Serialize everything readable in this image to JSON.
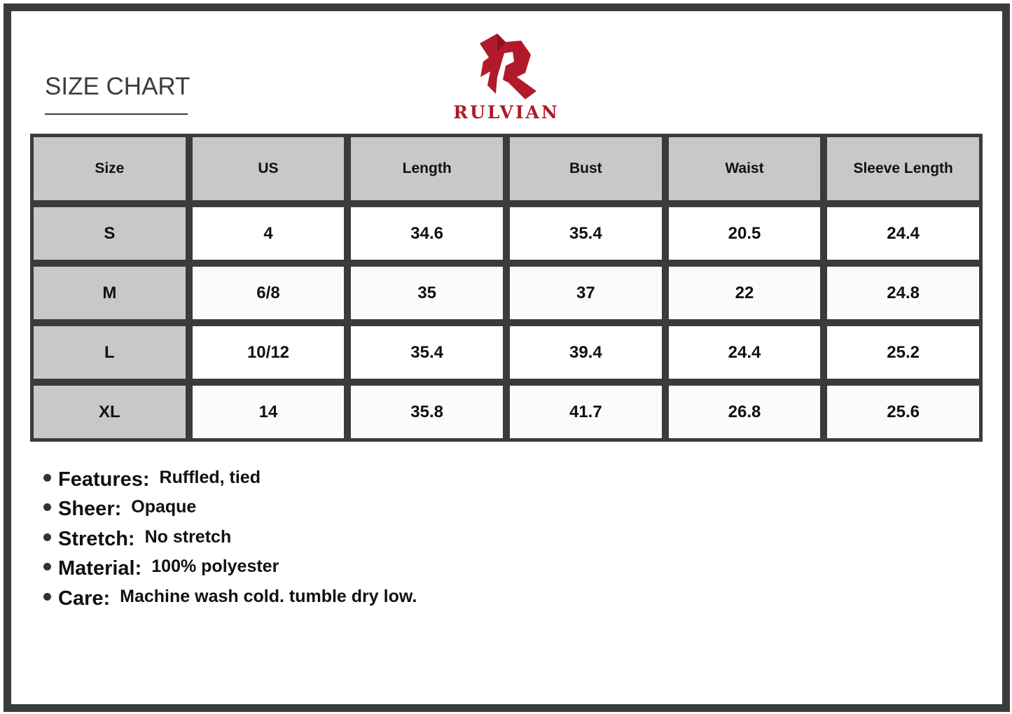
{
  "header": {
    "title": "SIZE CHART"
  },
  "brand": {
    "name": "RULVIAN",
    "color": "#b01a2a",
    "logo_icon": "stylized-r-logo"
  },
  "table": {
    "columns": [
      "Size",
      "US",
      "Length",
      "Bust",
      "Waist",
      "Sleeve Length"
    ],
    "rows": [
      [
        "S",
        "4",
        "34.6",
        "35.4",
        "20.5",
        "24.4"
      ],
      [
        "M",
        "6/8",
        "35",
        "37",
        "22",
        "24.8"
      ],
      [
        "L",
        "10/12",
        "35.4",
        "39.4",
        "24.4",
        "25.2"
      ],
      [
        "XL",
        "14",
        "35.8",
        "41.7",
        "26.8",
        "25.6"
      ]
    ]
  },
  "specs": [
    {
      "label": "Features:",
      "value": "Ruffled, tied"
    },
    {
      "label": "Sheer:",
      "value": "Opaque"
    },
    {
      "label": "Stretch:",
      "value": "No stretch"
    },
    {
      "label": "Material:",
      "value": "100% polyester"
    },
    {
      "label": "Care:",
      "value": "Machine wash cold. tumble dry low."
    }
  ]
}
